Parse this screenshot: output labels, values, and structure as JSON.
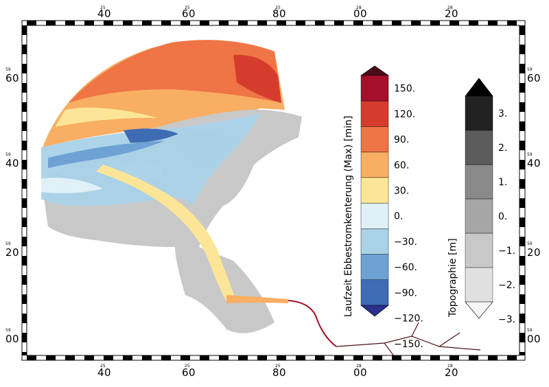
{
  "map": {
    "frame_ticks": {
      "top": [
        {
          "major": "40",
          "minor": "25"
        },
        {
          "major": "60",
          "minor": "25"
        },
        {
          "major": "80",
          "minor": "25"
        },
        {
          "major": "00",
          "minor": "28"
        },
        {
          "major": "20",
          "minor": "28"
        }
      ],
      "bottom": [
        {
          "major": "40",
          "minor": "25"
        },
        {
          "major": "60",
          "minor": "25"
        },
        {
          "major": "80",
          "minor": "25"
        },
        {
          "major": "00",
          "minor": "28"
        },
        {
          "major": "20",
          "minor": "28"
        }
      ],
      "left": [
        {
          "major": "60",
          "minor": "59"
        },
        {
          "major": "40",
          "minor": "59"
        },
        {
          "major": "20",
          "minor": "59"
        },
        {
          "major": "00",
          "minor": "59"
        }
      ],
      "right": [
        {
          "major": "60",
          "minor": "59"
        },
        {
          "major": "40",
          "minor": "59"
        },
        {
          "major": "20",
          "minor": "59"
        },
        {
          "major": "00",
          "minor": "59"
        }
      ]
    },
    "colorbar_flow": {
      "title": "Laufzeit Ebbestromkenterung (Max) [min]",
      "colors": [
        "#2b2f8f",
        "#3f6bb5",
        "#6ea2d4",
        "#a9d2e8",
        "#dff0f7",
        "#fde597",
        "#f8ae63",
        "#ef7446",
        "#d63c2d",
        "#a40f2c",
        "#4a0d16"
      ],
      "ticks": [
        "150.",
        "120.",
        "90.",
        "60.",
        "30.",
        "0.",
        "-30.",
        "-60.",
        "-90.",
        "-120.",
        "-150."
      ]
    },
    "colorbar_topo": {
      "title": "Topographie [m]",
      "colors": [
        "#f6f6f6",
        "#e0e0e0",
        "#c8c8c8",
        "#a6a6a6",
        "#8a8a8a",
        "#5c5c5c",
        "#222222",
        "#000000"
      ],
      "ticks": [
        "3.",
        "2.",
        "1.",
        "0.",
        "-1.",
        "-2.",
        "-3."
      ]
    }
  }
}
